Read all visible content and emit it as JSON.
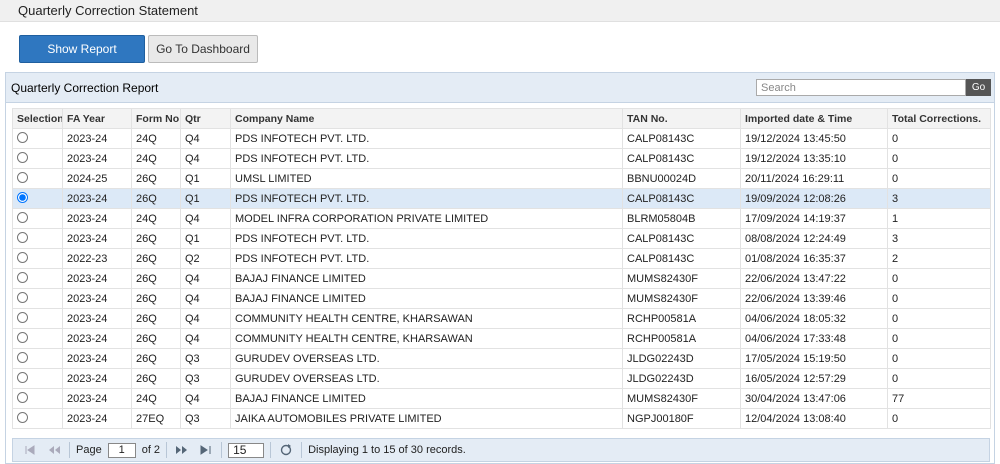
{
  "header": {
    "title": "Quarterly Correction Statement"
  },
  "buttons": {
    "show_report": "Show Report",
    "dashboard": "Go To Dashboard"
  },
  "panel": {
    "title": "Quarterly Correction Report",
    "search_placeholder": "Search",
    "search_button": "Go"
  },
  "table": {
    "columns": [
      "Selection",
      "FA Year",
      "Form No",
      "Qtr",
      "Company Name",
      "TAN No.",
      "Imported date & Time",
      "Total Corrections."
    ],
    "selected_row": 3,
    "rows": [
      [
        "2023-24",
        "24Q",
        "Q4",
        "PDS INFOTECH PVT. LTD.",
        "CALP08143C",
        "19/12/2024 13:45:50",
        0
      ],
      [
        "2023-24",
        "24Q",
        "Q4",
        "PDS INFOTECH PVT. LTD.",
        "CALP08143C",
        "19/12/2024 13:35:10",
        0
      ],
      [
        "2024-25",
        "26Q",
        "Q1",
        "UMSL LIMITED",
        "BBNU00024D",
        "20/11/2024 16:29:11",
        0
      ],
      [
        "2023-24",
        "26Q",
        "Q1",
        "PDS INFOTECH PVT. LTD.",
        "CALP08143C",
        "19/09/2024 12:08:26",
        3
      ],
      [
        "2023-24",
        "24Q",
        "Q4",
        "MODEL INFRA CORPORATION PRIVATE LIMITED",
        "BLRM05804B",
        "17/09/2024 14:19:37",
        1
      ],
      [
        "2023-24",
        "26Q",
        "Q1",
        "PDS INFOTECH PVT. LTD.",
        "CALP08143C",
        "08/08/2024 12:24:49",
        3
      ],
      [
        "2022-23",
        "26Q",
        "Q2",
        "PDS INFOTECH PVT. LTD.",
        "CALP08143C",
        "01/08/2024 16:35:37",
        2
      ],
      [
        "2023-24",
        "26Q",
        "Q4",
        "BAJAJ FINANCE LIMITED",
        "MUMS82430F",
        "22/06/2024 13:47:22",
        0
      ],
      [
        "2023-24",
        "26Q",
        "Q4",
        "BAJAJ FINANCE LIMITED",
        "MUMS82430F",
        "22/06/2024 13:39:46",
        0
      ],
      [
        "2023-24",
        "26Q",
        "Q4",
        "COMMUNITY HEALTH CENTRE, KHARSAWAN",
        "RCHP00581A",
        "04/06/2024 18:05:32",
        0
      ],
      [
        "2023-24",
        "26Q",
        "Q4",
        "COMMUNITY HEALTH CENTRE, KHARSAWAN",
        "RCHP00581A",
        "04/06/2024 17:33:48",
        0
      ],
      [
        "2023-24",
        "26Q",
        "Q3",
        "GURUDEV OVERSEAS LTD.",
        "JLDG02243D",
        "17/05/2024 15:19:50",
        0
      ],
      [
        "2023-24",
        "26Q",
        "Q3",
        "GURUDEV OVERSEAS LTD.",
        "JLDG02243D",
        "16/05/2024 12:57:29",
        0
      ],
      [
        "2023-24",
        "24Q",
        "Q4",
        "BAJAJ FINANCE LIMITED",
        "MUMS82430F",
        "30/04/2024 13:47:06",
        77
      ],
      [
        "2023-24",
        "27EQ",
        "Q3",
        "JAIKA AUTOMOBILES PRIVATE LIMITED",
        "NGPJ00180F",
        "12/04/2024 13:08:40",
        0
      ]
    ]
  },
  "pager": {
    "page_label": "Page",
    "page": "1",
    "of_label": "of 2",
    "page_size": "15",
    "info": "Displaying 1 to 15 of 30 records."
  }
}
